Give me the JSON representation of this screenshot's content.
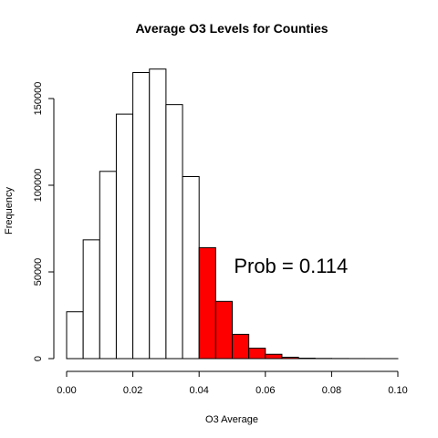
{
  "chart_data": {
    "type": "bar",
    "title": "Average O3 Levels for Counties",
    "xlabel": "O3 Average",
    "ylabel": "Frequency",
    "bin_width": 0.005,
    "bins": [
      {
        "start": 0.0,
        "end": 0.005,
        "value": 27000,
        "highlight": false
      },
      {
        "start": 0.005,
        "end": 0.01,
        "value": 68500,
        "highlight": false
      },
      {
        "start": 0.01,
        "end": 0.015,
        "value": 108000,
        "highlight": false
      },
      {
        "start": 0.015,
        "end": 0.02,
        "value": 141000,
        "highlight": false
      },
      {
        "start": 0.02,
        "end": 0.025,
        "value": 165000,
        "highlight": false
      },
      {
        "start": 0.025,
        "end": 0.03,
        "value": 167000,
        "highlight": false
      },
      {
        "start": 0.03,
        "end": 0.035,
        "value": 146500,
        "highlight": false
      },
      {
        "start": 0.035,
        "end": 0.04,
        "value": 105000,
        "highlight": false
      },
      {
        "start": 0.04,
        "end": 0.045,
        "value": 64000,
        "highlight": true
      },
      {
        "start": 0.045,
        "end": 0.05,
        "value": 33000,
        "highlight": true
      },
      {
        "start": 0.05,
        "end": 0.055,
        "value": 14000,
        "highlight": true
      },
      {
        "start": 0.055,
        "end": 0.06,
        "value": 6000,
        "highlight": true
      },
      {
        "start": 0.06,
        "end": 0.065,
        "value": 2500,
        "highlight": true
      },
      {
        "start": 0.065,
        "end": 0.07,
        "value": 800,
        "highlight": true
      },
      {
        "start": 0.07,
        "end": 0.075,
        "value": 250,
        "highlight": true
      },
      {
        "start": 0.075,
        "end": 0.08,
        "value": 100,
        "highlight": true
      },
      {
        "start": 0.08,
        "end": 0.085,
        "value": 50,
        "highlight": true
      },
      {
        "start": 0.085,
        "end": 0.09,
        "value": 20,
        "highlight": true
      },
      {
        "start": 0.09,
        "end": 0.095,
        "value": 10,
        "highlight": true
      },
      {
        "start": 0.095,
        "end": 0.1,
        "value": 5,
        "highlight": true
      }
    ],
    "xlim": [
      0,
      0.1
    ],
    "ylim": [
      0,
      170000
    ],
    "x_ticks": [
      {
        "value": 0.0,
        "label": "0.00"
      },
      {
        "value": 0.02,
        "label": "0.02"
      },
      {
        "value": 0.04,
        "label": "0.04"
      },
      {
        "value": 0.06,
        "label": "0.06"
      },
      {
        "value": 0.08,
        "label": "0.08"
      },
      {
        "value": 0.1,
        "label": "0.10"
      }
    ],
    "y_ticks": [
      {
        "value": 0,
        "label": "0"
      },
      {
        "value": 50000,
        "label": "50000"
      },
      {
        "value": 100000,
        "label": "100000"
      },
      {
        "value": 150000,
        "label": "150000"
      }
    ],
    "annotation": {
      "text": "Prob = 0.114",
      "x": 0.0505,
      "y": 52500
    },
    "colors": {
      "highlight": "#ff0000",
      "normal": "#ffffff",
      "stroke": "#000000"
    }
  }
}
